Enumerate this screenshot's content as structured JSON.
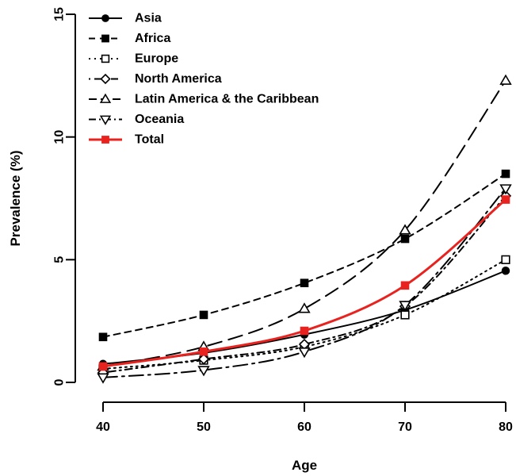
{
  "chart_data": {
    "type": "line",
    "title": "",
    "xlabel": "Age",
    "ylabel": "Prevalence (%)",
    "x": [
      40,
      50,
      60,
      70,
      80
    ],
    "xlim": [
      40,
      80
    ],
    "ylim": [
      0,
      15
    ],
    "x_ticks": [
      40,
      50,
      60,
      70,
      80
    ],
    "y_ticks": [
      0,
      5,
      10,
      15
    ],
    "grid": false,
    "legend_position": "top-left",
    "series": [
      {
        "name": "Asia",
        "marker": "filled-circle",
        "dash": "solid",
        "color": "#000000",
        "values": [
          0.75,
          1.2,
          1.95,
          2.95,
          4.55
        ]
      },
      {
        "name": "Africa",
        "marker": "filled-square",
        "dash": "short-dash",
        "color": "#000000",
        "values": [
          1.85,
          2.75,
          4.05,
          5.85,
          8.5
        ]
      },
      {
        "name": "Europe",
        "marker": "open-square",
        "dash": "dotted",
        "color": "#000000",
        "values": [
          0.55,
          0.9,
          1.45,
          2.75,
          5.0
        ]
      },
      {
        "name": "North America",
        "marker": "open-diamond",
        "dash": "dot-dash",
        "color": "#000000",
        "values": [
          0.4,
          0.95,
          1.55,
          3.1,
          7.6
        ]
      },
      {
        "name": "Latin America & the Caribbean",
        "marker": "open-triangle-up",
        "dash": "long-dash",
        "color": "#000000",
        "values": [
          0.65,
          1.45,
          3.0,
          6.2,
          12.3
        ]
      },
      {
        "name": "Oceania",
        "marker": "open-triangle-down",
        "dash": "long-dot-dash",
        "color": "#000000",
        "values": [
          0.2,
          0.5,
          1.25,
          3.15,
          7.9
        ]
      },
      {
        "name": "Total",
        "marker": "filled-square",
        "dash": "solid",
        "color": "#e8231f",
        "values": [
          0.65,
          1.25,
          2.1,
          3.95,
          7.45
        ]
      }
    ]
  }
}
